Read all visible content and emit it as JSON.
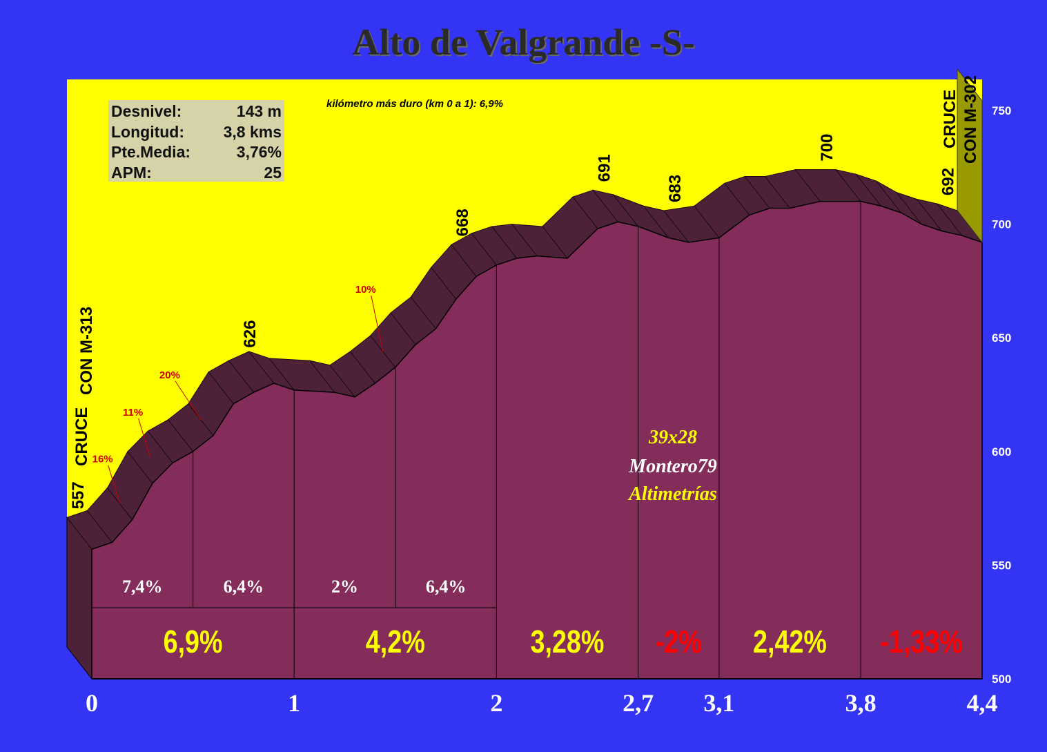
{
  "title": "Alto de Valgrande -S-",
  "stats": [
    {
      "label": "Desnivel:",
      "value": "143 m"
    },
    {
      "label": "Longitud:",
      "value": "3,8 kms"
    },
    {
      "label": "Pte.Media:",
      "value": "3,76%"
    },
    {
      "label": "APM:",
      "value": "25"
    }
  ],
  "hardest_km_note": "kilómetro más duro (km 0 a 1):  6,9%",
  "credits": {
    "gear": "39x28",
    "author": "Montero79",
    "site": "Altimetrías"
  },
  "colors": {
    "background": "#3434f4",
    "sky": "#ffff00",
    "profile_front": "#842c5a",
    "profile_top": "#4d2238",
    "climb_label": "#ffff00",
    "descent_label": "#ff0000",
    "steep_label": "#cc0000",
    "axis_text": "#ffffff"
  },
  "chart_data": {
    "type": "area",
    "title": "Alto de Valgrande -S-",
    "ylim": [
      500,
      750
    ],
    "y_ticks": [
      "500",
      "550",
      "600",
      "650",
      "700",
      "750"
    ],
    "x_ticks": [
      {
        "km": 0,
        "label": "0"
      },
      {
        "km": 1,
        "label": "1"
      },
      {
        "km": 2,
        "label": "2"
      },
      {
        "km": 2.7,
        "label": "2,7"
      },
      {
        "km": 3.1,
        "label": "3,1"
      },
      {
        "km": 3.8,
        "label": "3,8"
      },
      {
        "km": 4.4,
        "label": "4,4"
      }
    ],
    "profile": [
      {
        "km": 0,
        "alt": 557
      },
      {
        "km": 0.1,
        "alt": 560
      },
      {
        "km": 0.2,
        "alt": 570
      },
      {
        "km": 0.3,
        "alt": 586
      },
      {
        "km": 0.4,
        "alt": 595
      },
      {
        "km": 0.5,
        "alt": 600
      },
      {
        "km": 0.6,
        "alt": 607
      },
      {
        "km": 0.7,
        "alt": 621
      },
      {
        "km": 0.8,
        "alt": 626
      },
      {
        "km": 0.9,
        "alt": 630
      },
      {
        "km": 1.0,
        "alt": 627
      },
      {
        "km": 1.2,
        "alt": 626
      },
      {
        "km": 1.3,
        "alt": 624
      },
      {
        "km": 1.4,
        "alt": 630
      },
      {
        "km": 1.5,
        "alt": 637
      },
      {
        "km": 1.6,
        "alt": 647
      },
      {
        "km": 1.7,
        "alt": 654
      },
      {
        "km": 1.8,
        "alt": 667
      },
      {
        "km": 1.9,
        "alt": 677
      },
      {
        "km": 2.0,
        "alt": 682
      },
      {
        "km": 2.1,
        "alt": 685
      },
      {
        "km": 2.2,
        "alt": 686
      },
      {
        "km": 2.35,
        "alt": 685
      },
      {
        "km": 2.5,
        "alt": 698
      },
      {
        "km": 2.6,
        "alt": 701
      },
      {
        "km": 2.7,
        "alt": 699
      },
      {
        "km": 2.85,
        "alt": 694
      },
      {
        "km": 2.95,
        "alt": 692
      },
      {
        "km": 3.1,
        "alt": 694
      },
      {
        "km": 3.25,
        "alt": 704
      },
      {
        "km": 3.35,
        "alt": 707
      },
      {
        "km": 3.45,
        "alt": 707
      },
      {
        "km": 3.6,
        "alt": 710
      },
      {
        "km": 3.8,
        "alt": 710
      },
      {
        "km": 3.9,
        "alt": 708
      },
      {
        "km": 4.0,
        "alt": 705
      },
      {
        "km": 4.1,
        "alt": 700
      },
      {
        "km": 4.2,
        "alt": 697
      },
      {
        "km": 4.3,
        "alt": 695
      },
      {
        "km": 4.4,
        "alt": 692
      }
    ],
    "altitude_labels": [
      {
        "km": 0,
        "label": "557"
      },
      {
        "km": 0.85,
        "label": "626"
      },
      {
        "km": 1.9,
        "label": "668"
      },
      {
        "km": 2.6,
        "label": "691"
      },
      {
        "km": 2.95,
        "label": "683"
      },
      {
        "km": 3.7,
        "label": "700"
      },
      {
        "km": 4.3,
        "label": "692"
      }
    ],
    "section_gradients": [
      {
        "from": 0,
        "to": 1,
        "label": "6,9%",
        "kind": "climb"
      },
      {
        "from": 1,
        "to": 2,
        "label": "4,2%",
        "kind": "climb"
      },
      {
        "from": 2,
        "to": 2.7,
        "label": "3,28%",
        "kind": "climb"
      },
      {
        "from": 2.7,
        "to": 3.1,
        "label": "-2%",
        "kind": "descent"
      },
      {
        "from": 3.1,
        "to": 3.8,
        "label": "2,42%",
        "kind": "climb"
      },
      {
        "from": 3.8,
        "to": 4.4,
        "label": "-1,33%",
        "kind": "descent"
      }
    ],
    "half_km_gradients": [
      {
        "from": 0,
        "to": 0.5,
        "label": "7,4%"
      },
      {
        "from": 0.5,
        "to": 1,
        "label": "6,4%"
      },
      {
        "from": 1,
        "to": 1.5,
        "label": "2%"
      },
      {
        "from": 1.5,
        "to": 2,
        "label": "6,4%"
      }
    ],
    "steep_ramps": [
      {
        "km": 0.2,
        "label": "16%"
      },
      {
        "km": 0.35,
        "label": "11%"
      },
      {
        "km": 0.6,
        "label": "20%"
      },
      {
        "km": 1.5,
        "label": "10%"
      }
    ],
    "junctions": [
      {
        "km": 0,
        "line1": "CRUCE",
        "line2": "CON M-313"
      },
      {
        "km": 4.4,
        "line1": "CRUCE",
        "line2": "CON M-302"
      }
    ]
  }
}
